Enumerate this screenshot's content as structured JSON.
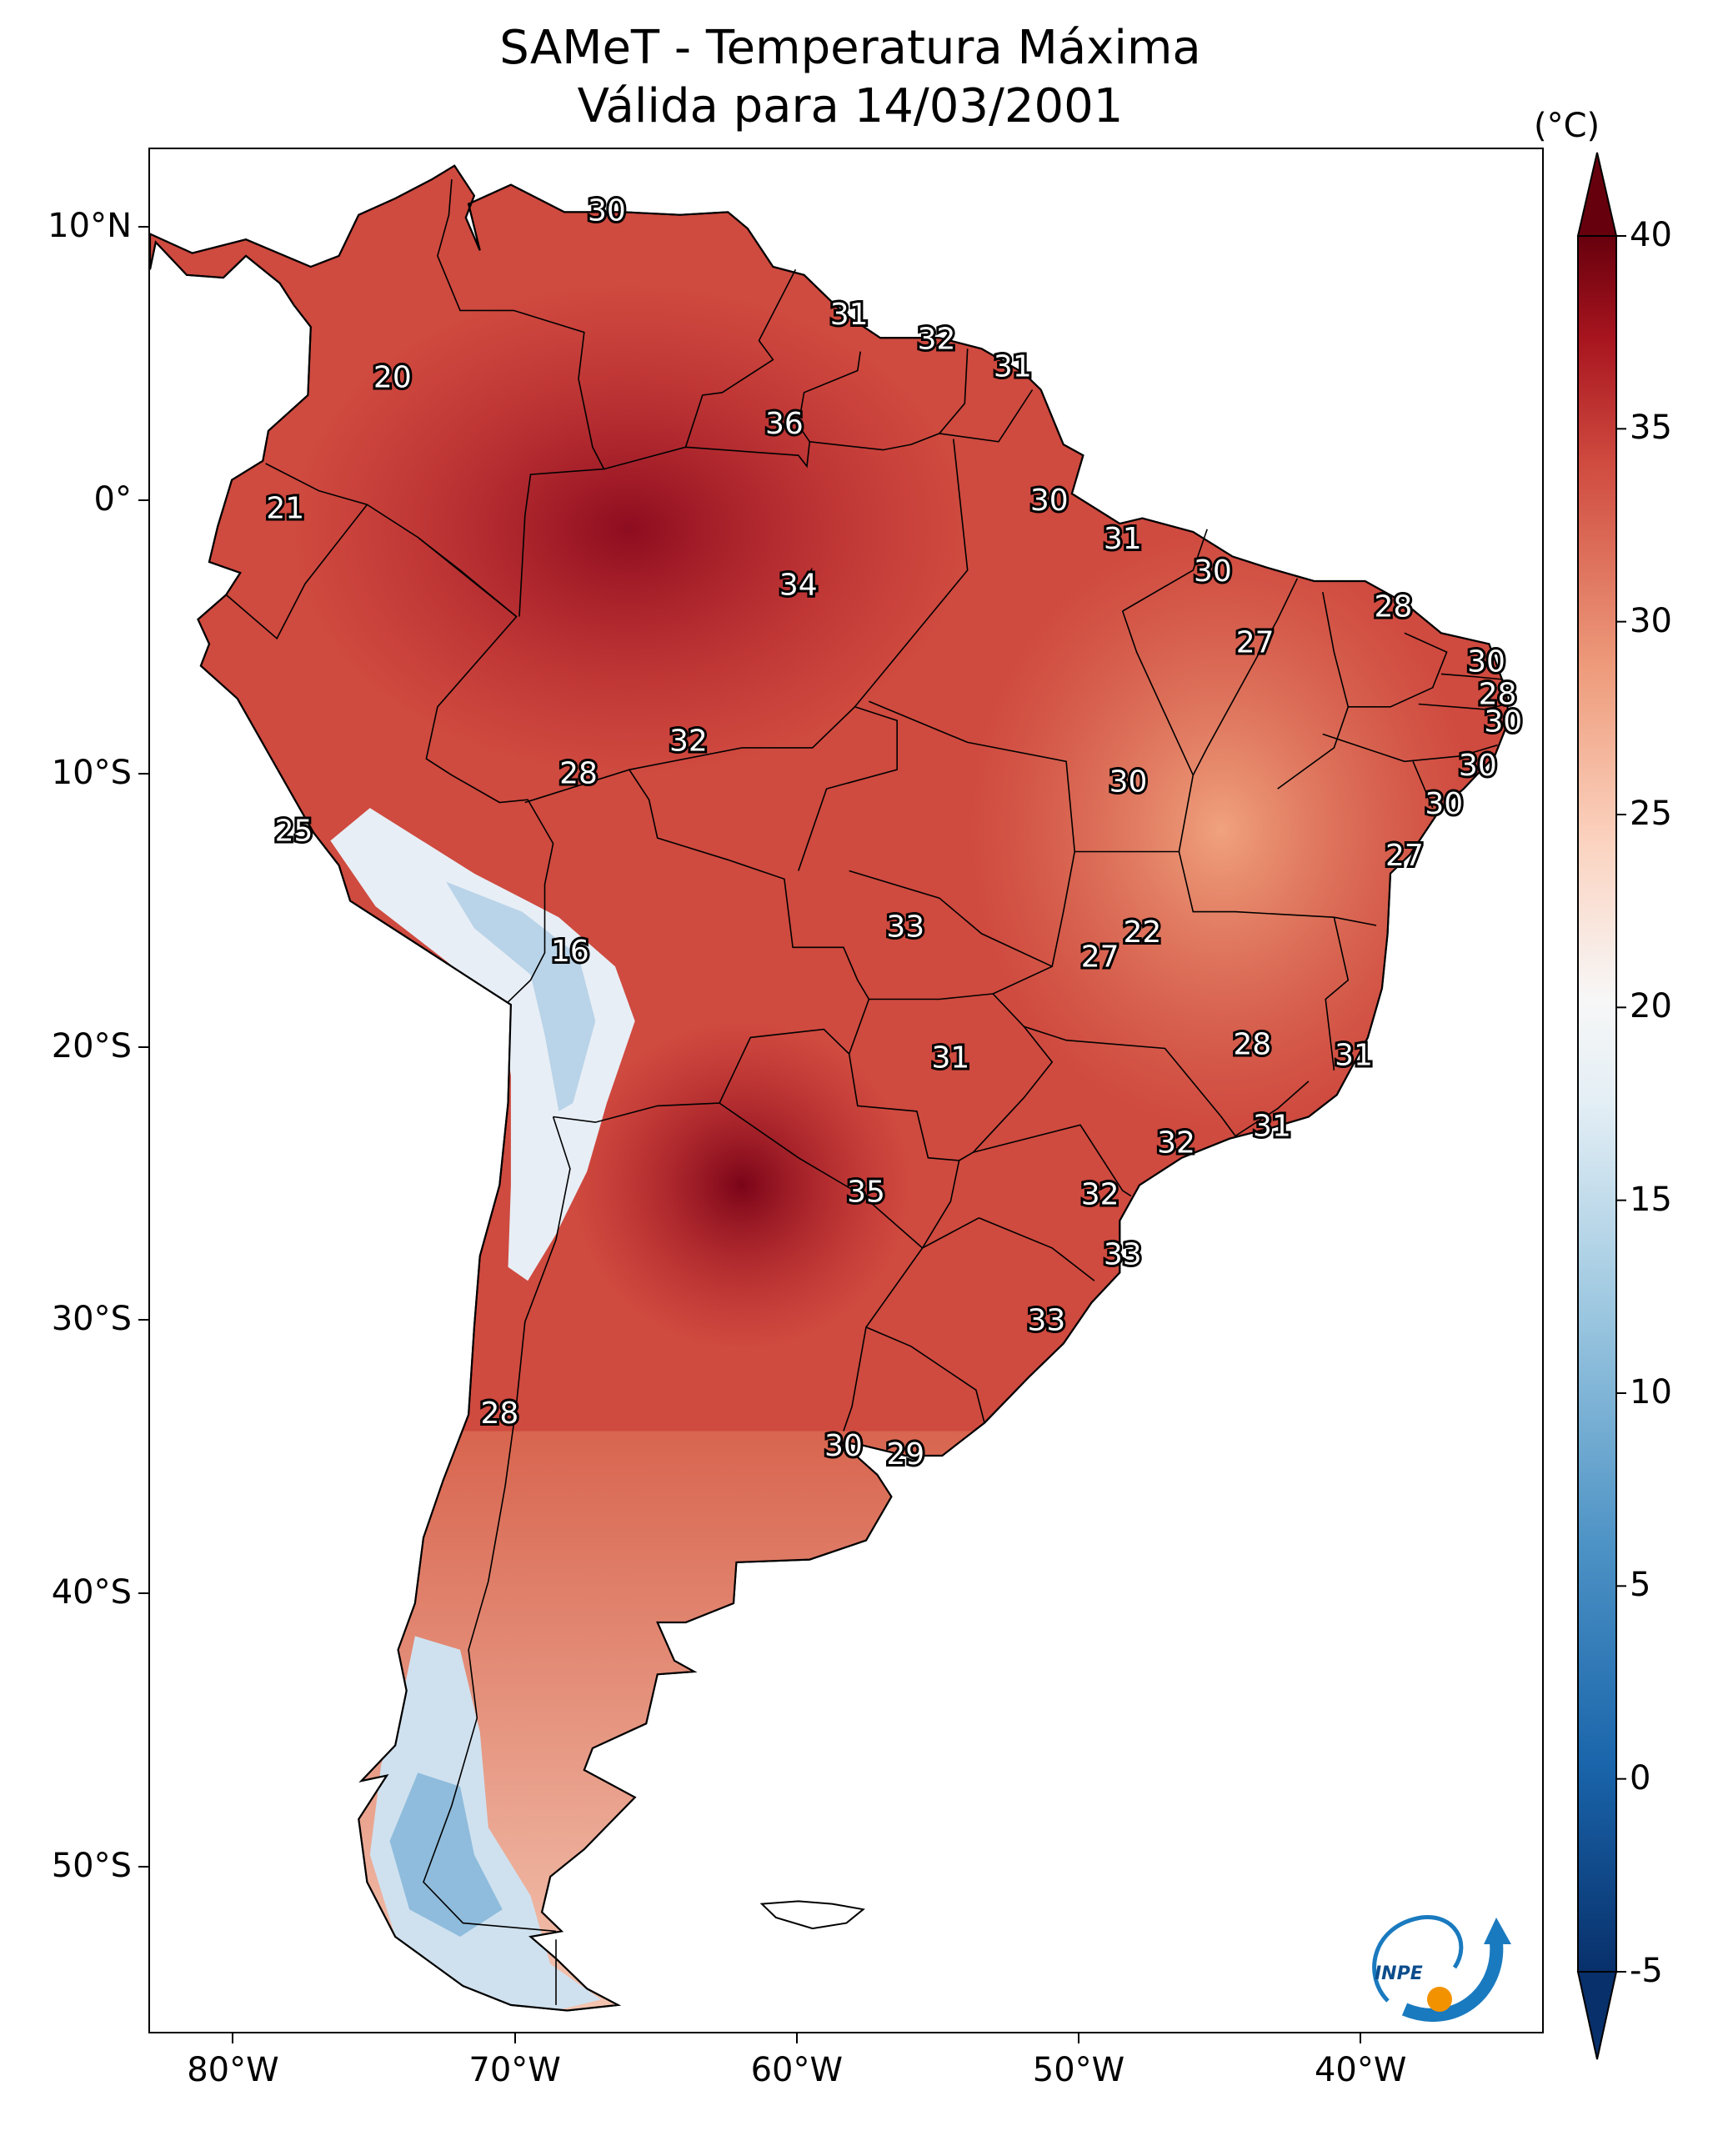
{
  "title": {
    "line1": "SAMeT - Temperatura Máxima",
    "line2": "Válida para 14/03/2001"
  },
  "map": {
    "region": "South America",
    "variable": "Maximum temperature",
    "lat_range": [
      -56,
      13
    ],
    "lon_range": [
      -83,
      -33
    ],
    "lat_ticks": [
      {
        "value": 10,
        "label": "10°N"
      },
      {
        "value": 0,
        "label": "0°"
      },
      {
        "value": -10,
        "label": "10°S"
      },
      {
        "value": -20,
        "label": "20°S"
      },
      {
        "value": -30,
        "label": "30°S"
      },
      {
        "value": -40,
        "label": "40°S"
      },
      {
        "value": -50,
        "label": "50°S"
      }
    ],
    "lon_ticks": [
      {
        "value": -80,
        "label": "80°W"
      },
      {
        "value": -70,
        "label": "70°W"
      },
      {
        "value": -60,
        "label": "60°W"
      },
      {
        "value": -50,
        "label": "50°W"
      },
      {
        "value": -40,
        "label": "40°W"
      }
    ],
    "station_values": [
      {
        "lon": -66.8,
        "lat": 10.6,
        "value": "30"
      },
      {
        "lon": -58.2,
        "lat": 6.8,
        "value": "31"
      },
      {
        "lon": -55.1,
        "lat": 5.9,
        "value": "32"
      },
      {
        "lon": -52.4,
        "lat": 4.9,
        "value": "31"
      },
      {
        "lon": -74.4,
        "lat": 4.5,
        "value": "20"
      },
      {
        "lon": -60.5,
        "lat": 2.8,
        "value": "36"
      },
      {
        "lon": -78.2,
        "lat": -0.3,
        "value": "21"
      },
      {
        "lon": -51.1,
        "lat": 0.0,
        "value": "30"
      },
      {
        "lon": -48.5,
        "lat": -1.4,
        "value": "31"
      },
      {
        "lon": -45.3,
        "lat": -2.6,
        "value": "30"
      },
      {
        "lon": -60.0,
        "lat": -3.1,
        "value": "34"
      },
      {
        "lon": -38.9,
        "lat": -3.9,
        "value": "28"
      },
      {
        "lon": -43.8,
        "lat": -5.2,
        "value": "27"
      },
      {
        "lon": -35.6,
        "lat": -5.9,
        "value": "30"
      },
      {
        "lon": -35.2,
        "lat": -7.1,
        "value": "28"
      },
      {
        "lon": -35.0,
        "lat": -8.1,
        "value": "30"
      },
      {
        "lon": -63.9,
        "lat": -8.8,
        "value": "32"
      },
      {
        "lon": -35.9,
        "lat": -9.7,
        "value": "30"
      },
      {
        "lon": -67.8,
        "lat": -10.0,
        "value": "28"
      },
      {
        "lon": -48.3,
        "lat": -10.3,
        "value": "30"
      },
      {
        "lon": -37.1,
        "lat": -11.1,
        "value": "30"
      },
      {
        "lon": -77.9,
        "lat": -12.1,
        "value": "25"
      },
      {
        "lon": -38.5,
        "lat": -13.0,
        "value": "27"
      },
      {
        "lon": -56.2,
        "lat": -15.6,
        "value": "33"
      },
      {
        "lon": -47.8,
        "lat": -15.8,
        "value": "22"
      },
      {
        "lon": -49.3,
        "lat": -16.7,
        "value": "27"
      },
      {
        "lon": -68.1,
        "lat": -16.5,
        "value": "16"
      },
      {
        "lon": -43.9,
        "lat": -19.9,
        "value": "28"
      },
      {
        "lon": -40.3,
        "lat": -20.3,
        "value": "31"
      },
      {
        "lon": -54.6,
        "lat": -20.4,
        "value": "31"
      },
      {
        "lon": -43.2,
        "lat": -22.9,
        "value": "31"
      },
      {
        "lon": -46.6,
        "lat": -23.5,
        "value": "32"
      },
      {
        "lon": -57.6,
        "lat": -25.3,
        "value": "35"
      },
      {
        "lon": -49.3,
        "lat": -25.4,
        "value": "32"
      },
      {
        "lon": -48.5,
        "lat": -27.6,
        "value": "33"
      },
      {
        "lon": -51.2,
        "lat": -30.0,
        "value": "33"
      },
      {
        "lon": -70.6,
        "lat": -33.4,
        "value": "28"
      },
      {
        "lon": -58.4,
        "lat": -34.6,
        "value": "30"
      },
      {
        "lon": -56.2,
        "lat": -34.9,
        "value": "29"
      }
    ]
  },
  "colorbar": {
    "unit": "(°C)",
    "min": -5,
    "max": 40,
    "ticks": [
      {
        "value": 40,
        "label": "40"
      },
      {
        "value": 35,
        "label": "35"
      },
      {
        "value": 30,
        "label": "30"
      },
      {
        "value": 25,
        "label": "25"
      },
      {
        "value": 20,
        "label": "20"
      },
      {
        "value": 15,
        "label": "15"
      },
      {
        "value": 10,
        "label": "10"
      },
      {
        "value": 5,
        "label": "5"
      },
      {
        "value": 0,
        "label": "0"
      },
      {
        "value": -5,
        "label": "-5"
      }
    ],
    "colors": {
      "cold": "#08306b",
      "mid": "#f7f7f7",
      "warm": "#67000d"
    }
  },
  "logo": {
    "text": "INPE"
  }
}
